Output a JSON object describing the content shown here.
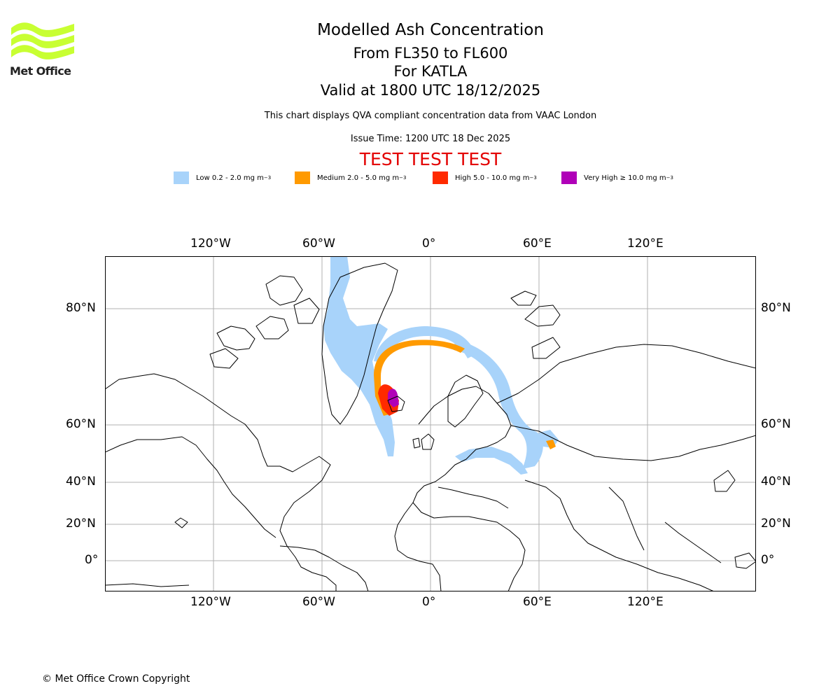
{
  "brand": {
    "logo_text": "Met Office",
    "logo_color": "#c8ff32"
  },
  "header": {
    "title": "Modelled Ash Concentration",
    "levels": "From FL350 to FL600",
    "volcano": "For KATLA",
    "valid": "Valid at 1800 UTC 18/12/2025",
    "description": "This chart displays QVA compliant concentration data from VAAC London",
    "issue_time": "Issue Time: 1200 UTC 18 Dec 2025",
    "banner": "TEST TEST TEST"
  },
  "legend": [
    {
      "label": "Low 0.2 - 2.0 mg m",
      "color": "#a8d3fa"
    },
    {
      "label": "Medium 2.0 - 5.0 mg m",
      "color": "#ff9a00"
    },
    {
      "label": "High 5.0 - 10.0 mg m",
      "color": "#ff2a00"
    },
    {
      "label": "Very High ≥ 10.0 mg m",
      "color": "#b000b8"
    }
  ],
  "legend_unit_exponent": "−3",
  "map": {
    "lon_labels": [
      "120°W",
      "60°W",
      "0°",
      "60°E",
      "120°E"
    ],
    "lat_labels": [
      "80°N",
      "60°N",
      "40°N",
      "20°N",
      "0°"
    ],
    "gridlines": true
  },
  "footer": {
    "copyright": "© Met Office Crown Copyright"
  }
}
